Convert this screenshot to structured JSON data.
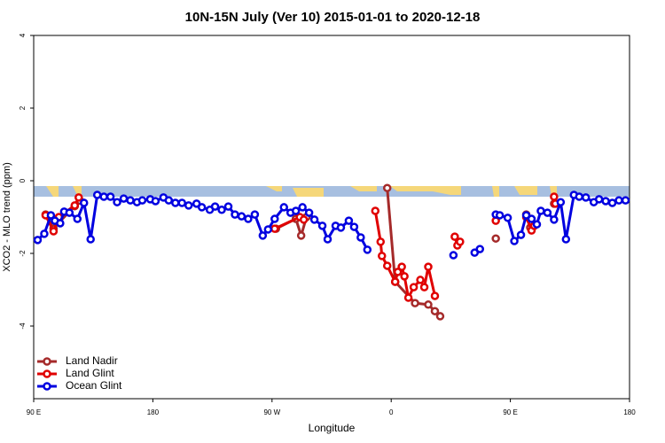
{
  "chart_data": {
    "type": "line",
    "title": "10N-15N July (Ver 10)   2015-01-01 to 2020-12-18",
    "x_label": "Longitude",
    "y_label": "XCO2 - MLO trend (ppm)",
    "xlim": [
      90,
      540
    ],
    "ylim": [
      -6,
      4
    ],
    "xticks": [
      {
        "value": 90,
        "label": "90 E"
      },
      180,
      {
        "value": 270,
        "label": "90 W"
      },
      {
        "value": 360,
        "label": "0"
      },
      {
        "value": 450,
        "label": "90 E"
      },
      {
        "value": 540,
        "label": "180"
      }
    ],
    "yticks": [
      -4,
      -2,
      0,
      2,
      4
    ],
    "legend": "bottom-left",
    "series": [
      {
        "name": "Land Nadir",
        "color": "#a52a2a",
        "x": [
          99,
          105,
          109,
          121,
          125,
          null,
          273,
          288,
          292,
          296,
          null,
          357,
          363,
          378,
          388,
          393,
          397,
          null,
          439,
          null,
          462,
          465,
          null,
          483
        ],
        "values": [
          -0.93,
          -1.32,
          -1.15,
          -0.7,
          -0.55,
          null,
          -1.32,
          -1.05,
          -1.51,
          -1.0,
          null,
          -0.2,
          -2.78,
          -3.37,
          -3.41,
          -3.59,
          -3.73,
          null,
          -1.59,
          null,
          -0.93,
          -1.29,
          null,
          -0.63
        ]
      },
      {
        "name": "Land Glint",
        "color": "#e00000",
        "x": [
          99,
          105,
          109,
          121,
          124,
          null,
          272,
          291,
          294,
          null,
          348,
          352,
          353,
          357,
          363,
          365,
          368,
          370,
          373,
          377,
          382,
          385,
          388,
          393,
          null,
          408,
          410,
          412,
          null,
          439,
          null,
          462,
          466,
          468,
          null,
          483,
          484
        ],
        "values": [
          -0.95,
          -1.39,
          -1.0,
          -0.68,
          -0.46,
          null,
          -1.32,
          -1.0,
          -1.07,
          null,
          -0.83,
          -1.68,
          -2.07,
          -2.34,
          -2.78,
          -2.51,
          -2.37,
          -2.63,
          -3.22,
          -2.93,
          -2.73,
          -2.93,
          -2.37,
          -3.17,
          null,
          -1.54,
          -1.78,
          -1.68,
          null,
          -1.1,
          null,
          -1.0,
          -1.37,
          -1.24,
          null,
          -0.44,
          -0.63
        ]
      },
      {
        "name": "Ocean Glint",
        "color": "#0000e0",
        "x": [
          93,
          98,
          103,
          106,
          110,
          113,
          117,
          123,
          128,
          133,
          138,
          143,
          148,
          153,
          158,
          163,
          168,
          172,
          178,
          182,
          188,
          192,
          197,
          202,
          207,
          213,
          217,
          223,
          227,
          232,
          237,
          242,
          247,
          252,
          257,
          263,
          267,
          272,
          279,
          284,
          288,
          293,
          298,
          302,
          308,
          312,
          318,
          322,
          328,
          332,
          337,
          342,
          null,
          407,
          null,
          423,
          427,
          null,
          439,
          442,
          448,
          453,
          458,
          462,
          466,
          470,
          473,
          478,
          483,
          488,
          492,
          498,
          502,
          507,
          513,
          517,
          522,
          527,
          532,
          537
        ],
        "values": [
          -1.63,
          -1.46,
          -0.95,
          -1.1,
          -1.17,
          -0.85,
          -0.88,
          -1.05,
          -0.61,
          -1.61,
          -0.39,
          -0.44,
          -0.44,
          -0.59,
          -0.49,
          -0.54,
          -0.59,
          -0.54,
          -0.51,
          -0.56,
          -0.46,
          -0.54,
          -0.61,
          -0.61,
          -0.68,
          -0.63,
          -0.73,
          -0.8,
          -0.71,
          -0.8,
          -0.71,
          -0.93,
          -0.98,
          -1.05,
          -0.93,
          -1.51,
          -1.34,
          -1.05,
          -0.73,
          -0.88,
          -0.83,
          -0.73,
          -0.88,
          -1.07,
          -1.24,
          -1.61,
          -1.24,
          -1.29,
          -1.1,
          -1.27,
          -1.56,
          -1.9,
          null,
          -2.05,
          null,
          -1.98,
          -1.88,
          null,
          -0.93,
          -0.95,
          -1.02,
          -1.66,
          -1.49,
          -0.95,
          -1.05,
          -1.2,
          -0.83,
          -0.88,
          -1.07,
          -0.59,
          -1.61,
          -0.39,
          -0.44,
          -0.46,
          -0.59,
          -0.51,
          -0.56,
          -0.61,
          -0.54,
          -0.54
        ]
      }
    ]
  }
}
